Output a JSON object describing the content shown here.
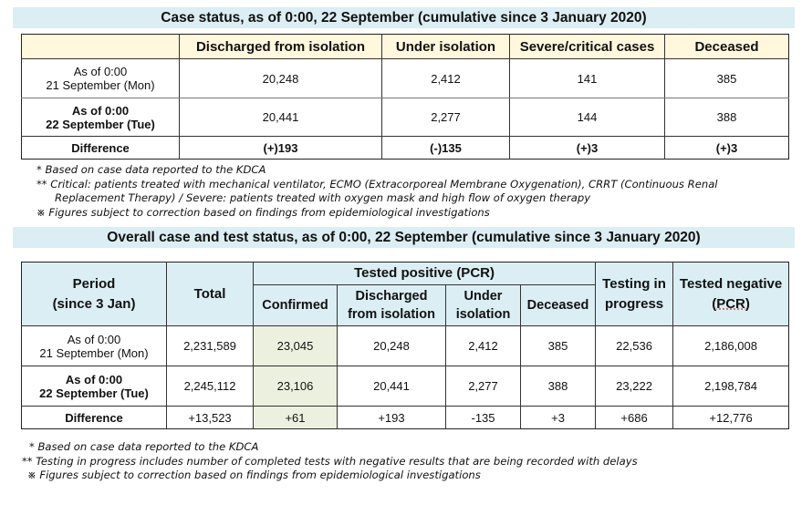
{
  "table1": {
    "title": "Case status, as of 0:00, 22 September (cumulative since 3 January 2020)",
    "columns": [
      "Discharged from isolation",
      "Under isolation",
      "Severe/critical cases",
      "Deceased"
    ],
    "rows": [
      {
        "label_line1": "As of 0:00",
        "label_line2": "21 September (Mon)",
        "values": [
          "20,248",
          "2,412",
          "141",
          "385"
        ]
      },
      {
        "label_line1": "As of 0:00",
        "label_line2": "22 September (Tue)",
        "values": [
          "20,441",
          "2,277",
          "144",
          "388"
        ]
      },
      {
        "label": "Difference",
        "values": [
          "(+)193",
          "(-)135",
          "(+)3",
          "(+)3"
        ]
      }
    ],
    "notes": [
      "* Based on case data reported to the KDCA",
      "** Critical: patients treated with mechanical ventilator, ECMO (Extracorporeal Membrane Oxygenation), CRRT (Continuous Renal",
      "Replacement Therapy) / Severe: patients treated with oxygen mask and high flow of oxygen therapy",
      "※ Figures subject to correction based on findings from epidemiological investigations"
    ]
  },
  "table2": {
    "title": "Overall case and test status, as of 0:00, 22 September (cumulative since 3 January 2020)",
    "headers": {
      "period_line1": "Period",
      "period_line2": "(since 3 Jan)",
      "total": "Total",
      "tested_positive": "Tested positive (PCR)",
      "confirmed": "Confirmed",
      "discharged_line1": "Discharged",
      "discharged_line2": "from isolation",
      "under_line1": "Under",
      "under_line2": "isolation",
      "deceased": "Deceased",
      "testing_line1": "Testing in",
      "testing_line2": "progress",
      "negative_line1": "Tested negative",
      "negative_line2": "(PCR)"
    },
    "rows": [
      {
        "label_line1": "As of 0:00",
        "label_line2": "21 September (Mon)",
        "values": [
          "2,231,589",
          "23,045",
          "20,248",
          "2,412",
          "385",
          "22,536",
          "2,186,008"
        ]
      },
      {
        "label_line1": "As of 0:00",
        "label_line2": "22 September (Tue)",
        "values": [
          "2,245,112",
          "23,106",
          "20,441",
          "2,277",
          "388",
          "23,222",
          "2,198,784"
        ]
      },
      {
        "label": "Difference",
        "values": [
          "+13,523",
          "+61",
          "+193",
          "-135",
          "+3",
          "+686",
          "+12,776"
        ]
      }
    ],
    "notes": [
      "* Based on case data reported to the KDCA",
      "** Testing in progress includes number of completed tests with negative results that are being recorded with delays",
      "※ Figures subject to correction based on findings from epidemiological investigations"
    ]
  }
}
